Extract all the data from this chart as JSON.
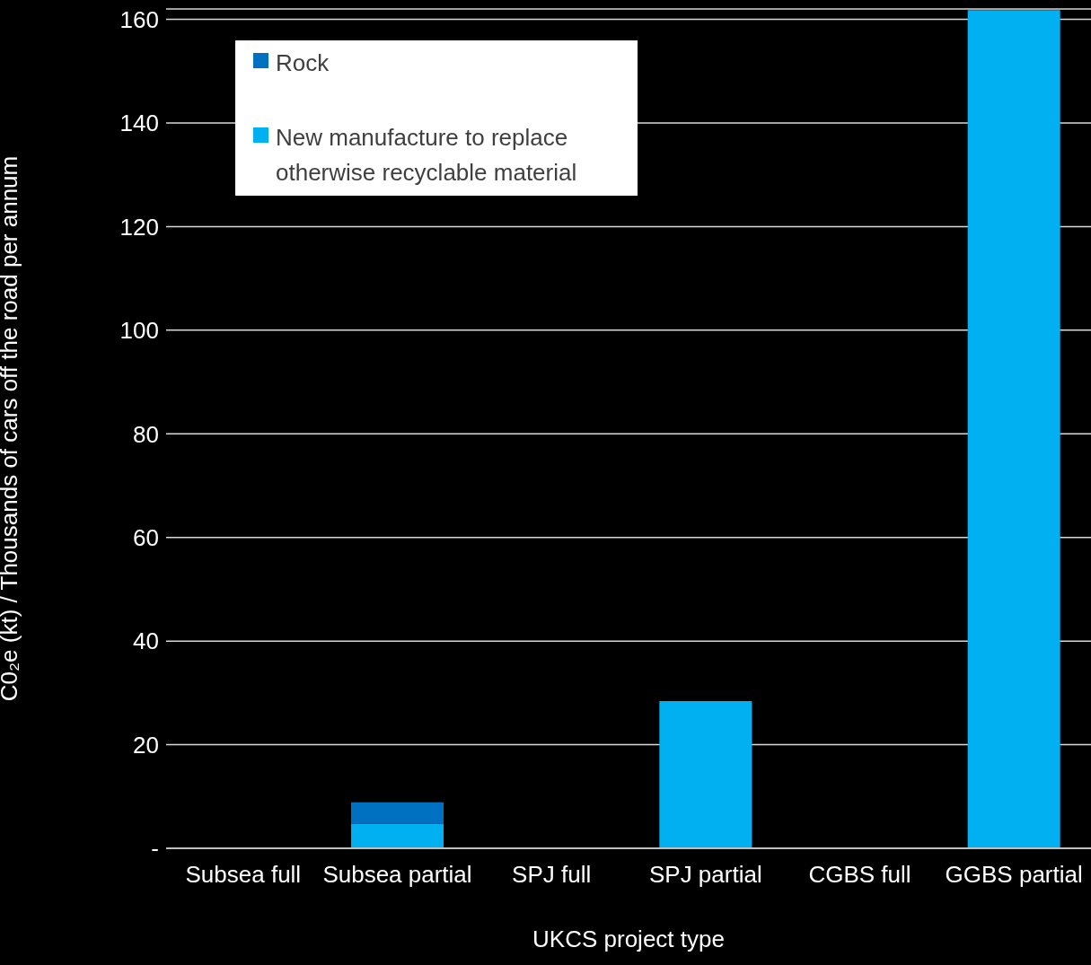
{
  "chart_data": {
    "type": "bar",
    "stacked": true,
    "xlabel": "UKCS project type",
    "ylabel": "C0₂e (kt) / Thousands of cars off the road per annum",
    "categories": [
      "Subsea full",
      "Subsea partial",
      "SPJ full",
      "SPJ partial",
      "CGBS full",
      "GGBS partial"
    ],
    "series": [
      {
        "name": "New manufacture to replace otherwise recyclable material",
        "color": "#00b0f0",
        "values": [
          0,
          4.7,
          0,
          28.4,
          0,
          161.8
        ]
      },
      {
        "name": "Rock",
        "color": "#0070c0",
        "values": [
          0,
          4.2,
          0,
          0,
          0,
          0
        ]
      }
    ],
    "ylim": [
      0,
      162
    ],
    "yticks": [
      {
        "value": 0,
        "label": "-"
      },
      20,
      40,
      60,
      80,
      100,
      120,
      140,
      160
    ],
    "grid": "y",
    "legend": "top left"
  }
}
